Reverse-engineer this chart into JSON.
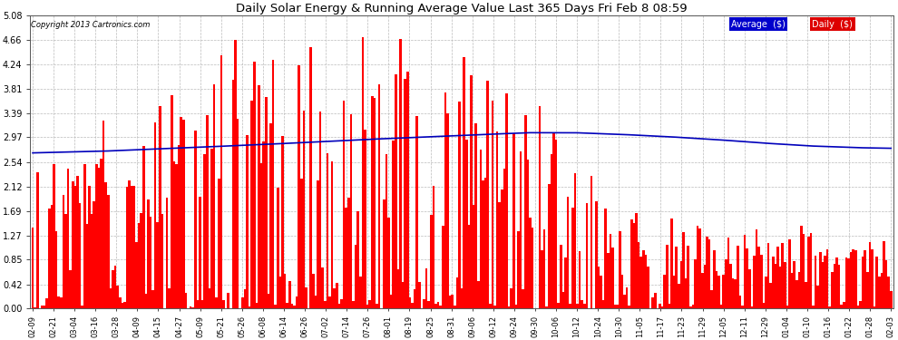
{
  "title": "Daily Solar Energy & Running Average Value Last 365 Days Fri Feb 8 08:59",
  "copyright": "Copyright 2013 Cartronics.com",
  "background_color": "#ffffff",
  "plot_bg_color": "#ffffff",
  "bar_color": "#ff0000",
  "avg_line_color": "#0000bb",
  "grid_color": "#bbbbbb",
  "ylim": [
    0.0,
    5.08
  ],
  "yticks": [
    0.0,
    0.42,
    0.85,
    1.27,
    1.69,
    2.12,
    2.54,
    2.97,
    3.39,
    3.81,
    4.24,
    4.66,
    5.08
  ],
  "legend_avg_color": "#0000cc",
  "legend_daily_color": "#dd0000",
  "legend_avg_text": "Average  ($)",
  "legend_daily_text": "Daily  ($)",
  "xtick_labels": [
    "02-09",
    "02-21",
    "03-04",
    "03-16",
    "03-28",
    "04-09",
    "04-15",
    "04-27",
    "05-09",
    "05-21",
    "05-26",
    "06-08",
    "06-14",
    "06-26",
    "07-02",
    "07-14",
    "07-26",
    "08-01",
    "08-19",
    "08-25",
    "08-31",
    "09-06",
    "09-12",
    "09-24",
    "09-30",
    "10-06",
    "10-12",
    "10-24",
    "10-30",
    "11-05",
    "11-17",
    "11-23",
    "11-29",
    "12-05",
    "12-11",
    "12-29",
    "01-04",
    "01-10",
    "01-16",
    "01-22",
    "01-28",
    "02-03"
  ],
  "num_bars": 365,
  "figsize": [
    9.9,
    3.75
  ],
  "dpi": 100
}
